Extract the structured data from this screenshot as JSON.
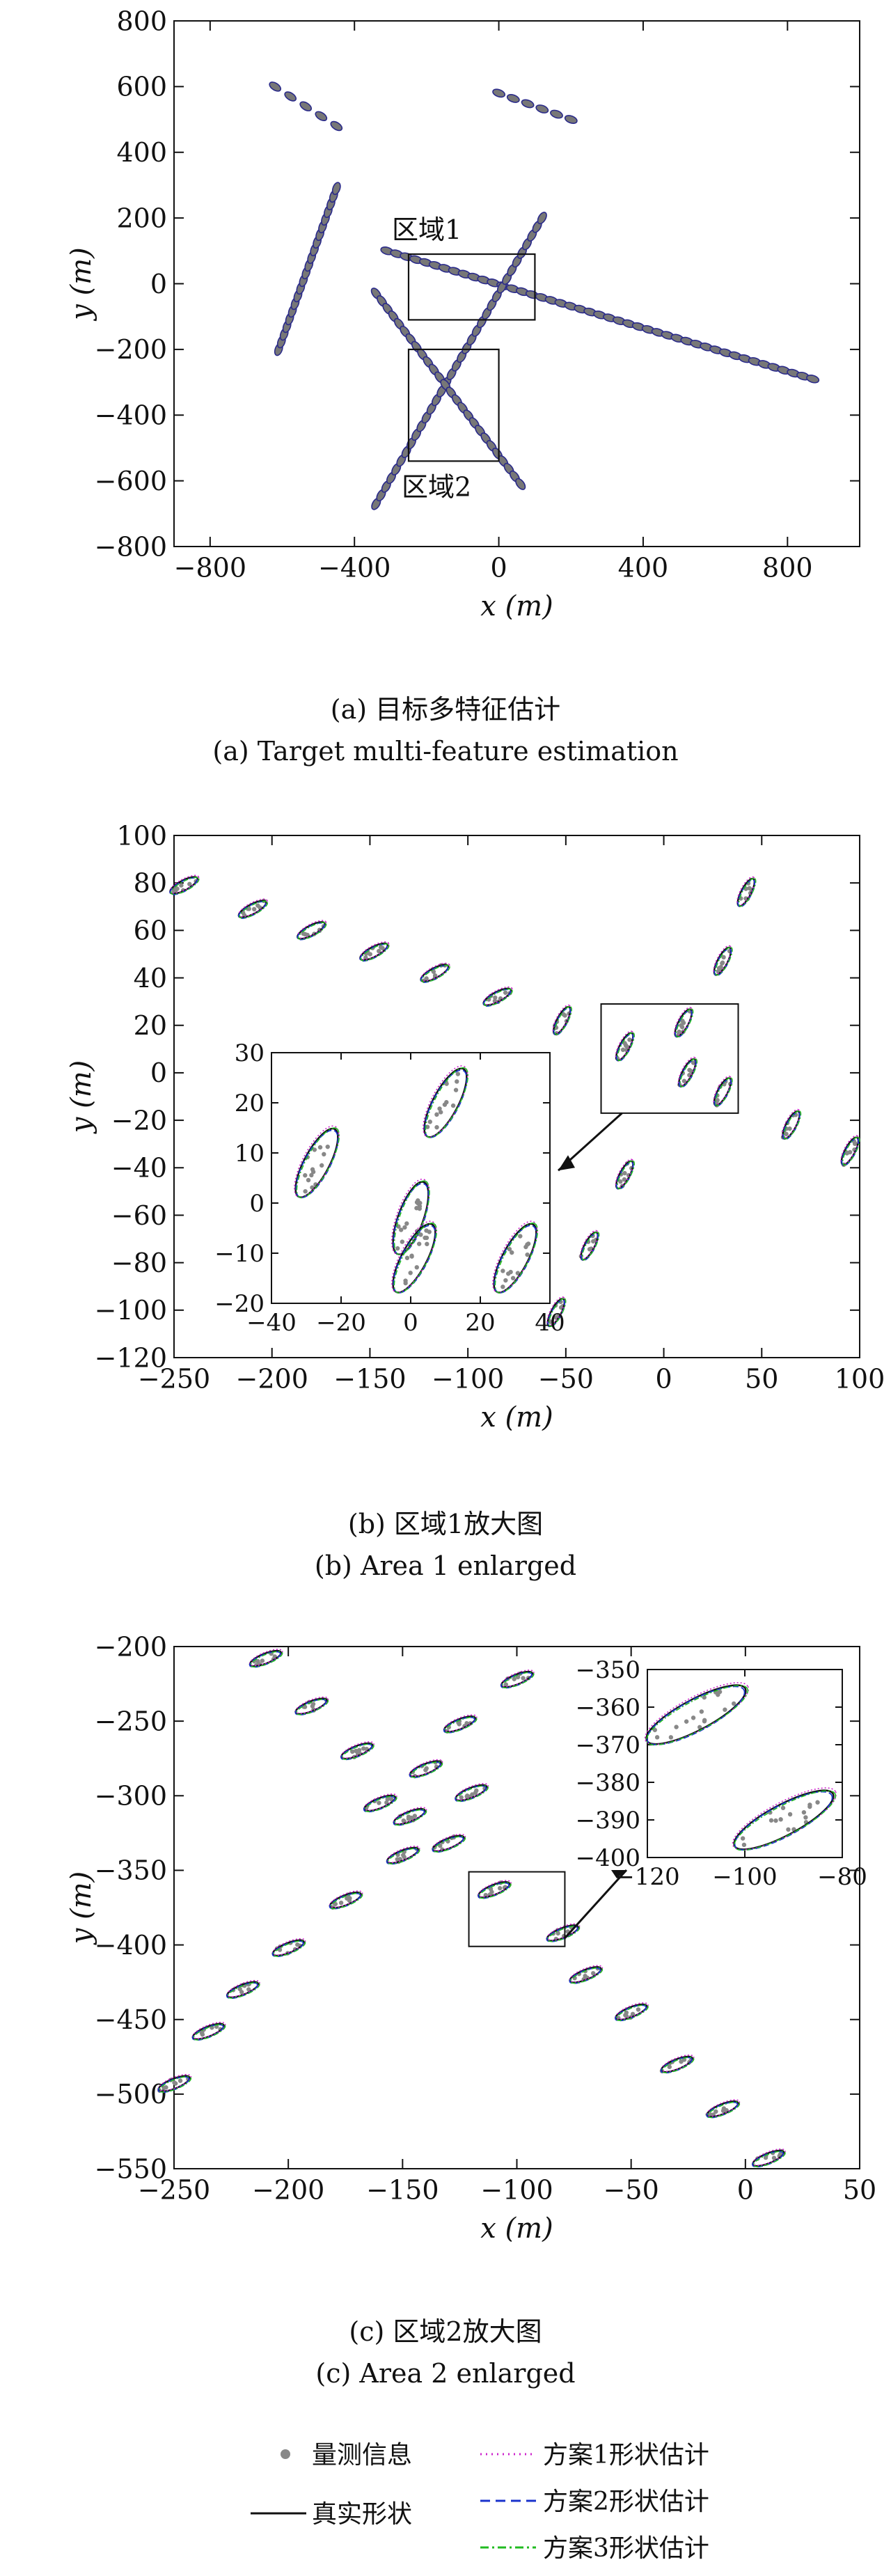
{
  "colors": {
    "measurement": "#888888",
    "truth": "#111111",
    "scheme1": "#cc22cc",
    "scheme2": "#1a33cc",
    "scheme3": "#22bb22"
  },
  "chart_data": [
    {
      "type": "scatter",
      "panel": "a",
      "xlabel": "x (m)",
      "ylabel": "y (m)",
      "xlim": [
        -900,
        1000
      ],
      "ylim": [
        -800,
        800
      ],
      "xticks": [
        -800,
        -400,
        0,
        400,
        800
      ],
      "yticks": [
        -800,
        -600,
        -400,
        -200,
        0,
        200,
        400,
        600,
        800
      ],
      "caption_cn": "(a) 目标多特征估计",
      "caption_en": "(a) Target multi-feature estimation",
      "tracks": [
        {
          "from": [
            -620,
            600
          ],
          "to": [
            -450,
            480
          ],
          "n": 5
        },
        {
          "from": [
            0,
            580
          ],
          "to": [
            200,
            500
          ],
          "n": 6
        },
        {
          "from": [
            -610,
            -200
          ],
          "to": [
            -450,
            290
          ],
          "n": 22
        },
        {
          "from": [
            -310,
            100
          ],
          "to": [
            870,
            -290
          ],
          "n": 45
        },
        {
          "from": [
            -340,
            -670
          ],
          "to": [
            120,
            200
          ],
          "n": 34
        },
        {
          "from": [
            -340,
            -30
          ],
          "to": [
            60,
            -610
          ],
          "n": 26
        }
      ],
      "regions": [
        {
          "label": "区域1",
          "x": [
            -250,
            100
          ],
          "y": [
            -110,
            90
          ]
        },
        {
          "label": "区域2",
          "x": [
            -250,
            0
          ],
          "y": [
            -540,
            -200
          ]
        }
      ]
    },
    {
      "type": "scatter",
      "panel": "b",
      "xlabel": "x (m)",
      "ylabel": "y (m)",
      "xlim": [
        -250,
        100
      ],
      "ylim": [
        -120,
        100
      ],
      "xticks": [
        -250,
        -200,
        -150,
        -100,
        -50,
        0,
        50,
        100
      ],
      "yticks": [
        -120,
        -100,
        -80,
        -60,
        -40,
        -20,
        0,
        20,
        40,
        60,
        80,
        100
      ],
      "caption_cn": "(b) 区域1放大图",
      "caption_en": "(b) Area 1 enlarged",
      "targets": [
        [
          -245,
          79
        ],
        [
          -210,
          69
        ],
        [
          -180,
          60
        ],
        [
          -148,
          51
        ],
        [
          -117,
          42
        ],
        [
          -85,
          32
        ],
        [
          -52,
          22
        ],
        [
          -20,
          11
        ],
        [
          10,
          21
        ],
        [
          12,
          0
        ],
        [
          30,
          -8
        ],
        [
          65,
          -22
        ],
        [
          95,
          -33
        ],
        [
          42,
          76
        ],
        [
          30,
          47
        ],
        [
          -20,
          -43
        ],
        [
          -38,
          -73
        ],
        [
          -55,
          -101
        ]
      ],
      "inset": {
        "xlim": [
          -40,
          40
        ],
        "ylim": [
          -20,
          30
        ],
        "xticks": [
          -40,
          -20,
          0,
          20,
          40
        ],
        "yticks": [
          -20,
          -10,
          0,
          10,
          20,
          30
        ],
        "targets": [
          [
            -27,
            8
          ],
          [
            10,
            20
          ],
          [
            0,
            -3
          ],
          [
            30,
            -11
          ],
          [
            1,
            -11
          ]
        ]
      }
    },
    {
      "type": "scatter",
      "panel": "c",
      "xlabel": "x (m)",
      "ylabel": "y (m)",
      "xlim": [
        -250,
        50
      ],
      "ylim": [
        -550,
        -200
      ],
      "xticks": [
        -250,
        -200,
        -150,
        -100,
        -50,
        0,
        50
      ],
      "yticks": [
        -550,
        -500,
        -450,
        -400,
        -350,
        -300,
        -250,
        -200
      ],
      "caption_cn": "(c) 区域2放大图",
      "caption_en": "(c) Area 2 enlarged",
      "targets": [
        [
          -210,
          -208
        ],
        [
          -190,
          -240
        ],
        [
          -170,
          -270
        ],
        [
          -160,
          -305
        ],
        [
          -150,
          -340
        ],
        [
          -130,
          -332
        ],
        [
          -120,
          -298
        ],
        [
          -110,
          -363
        ],
        [
          -80,
          -392
        ],
        [
          -140,
          -282
        ],
        [
          -100,
          -222
        ],
        [
          -125,
          -252
        ],
        [
          -147,
          -314
        ],
        [
          -175,
          -370
        ],
        [
          -200,
          -402
        ],
        [
          -220,
          -430
        ],
        [
          -235,
          -458
        ],
        [
          -250,
          -493
        ],
        [
          -70,
          -420
        ],
        [
          -50,
          -445
        ],
        [
          -30,
          -480
        ],
        [
          -10,
          -510
        ],
        [
          10,
          -543
        ]
      ],
      "inset": {
        "xlim": [
          -120,
          -80
        ],
        "ylim": [
          -400,
          -350
        ],
        "xticks": [
          -120,
          -100,
          -80
        ],
        "yticks": [
          -400,
          -390,
          -380,
          -370,
          -360,
          -350
        ],
        "targets": [
          [
            -110,
            -362
          ],
          [
            -92,
            -390
          ]
        ]
      }
    }
  ],
  "legend": {
    "items": [
      {
        "key": "measurement",
        "label": "量测信息"
      },
      {
        "key": "truth",
        "label": "真实形状"
      },
      {
        "key": "scheme1",
        "label": "方案1形状估计"
      },
      {
        "key": "scheme2",
        "label": "方案2形状估计"
      },
      {
        "key": "scheme3",
        "label": "方案3形状估计"
      }
    ]
  }
}
